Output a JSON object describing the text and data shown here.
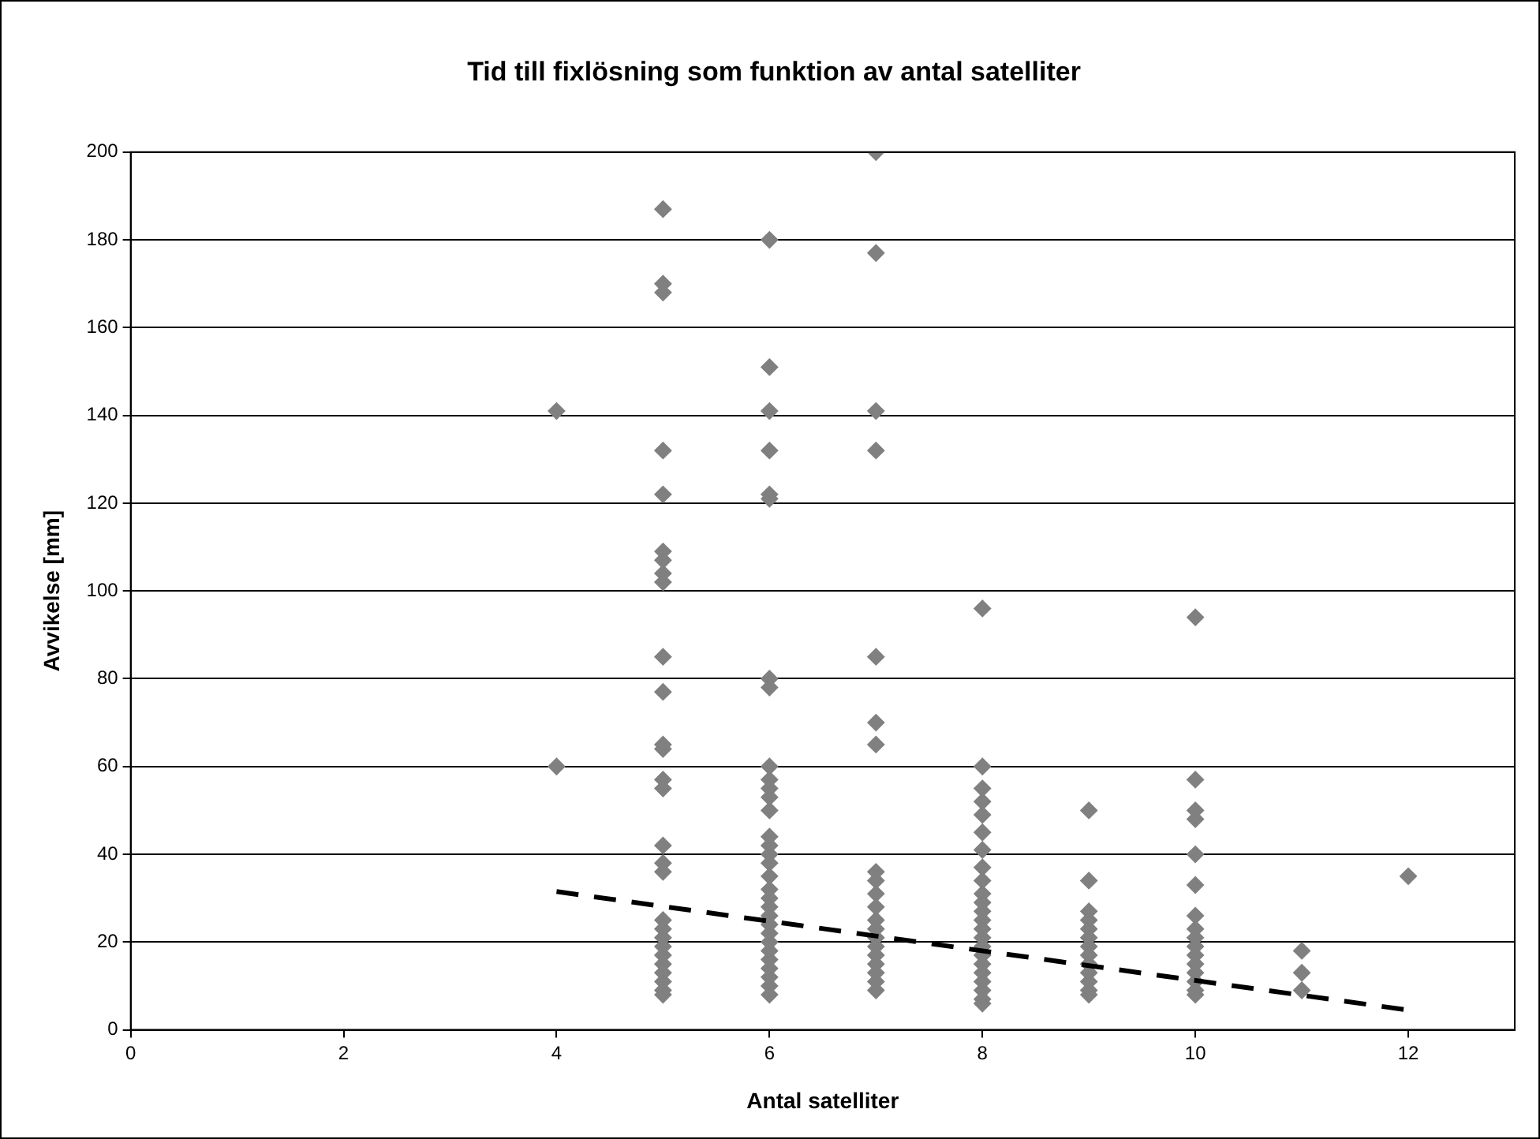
{
  "chart_data": {
    "type": "scatter",
    "title": "Tid till fixlösning som funktion av antal satelliter",
    "xlabel": "Antal satelliter",
    "ylabel": "Avvikelse [mm]",
    "xlim": [
      0,
      13
    ],
    "xticks": [
      0,
      2,
      4,
      6,
      8,
      10,
      12
    ],
    "ylim": [
      0,
      200
    ],
    "yticks": [
      0,
      20,
      40,
      60,
      80,
      100,
      120,
      140,
      160,
      180,
      200
    ],
    "grid": "y",
    "legend": false,
    "series": [
      {
        "type": "scatter",
        "marker": "diamond",
        "color": "#808080",
        "x": [
          4,
          4,
          5,
          5,
          5,
          5,
          5,
          5,
          5,
          5,
          5,
          5,
          5,
          5,
          5,
          5,
          5,
          5,
          5,
          5,
          5,
          5,
          5,
          5,
          5,
          5,
          5,
          5,
          5,
          5,
          6,
          6,
          6,
          6,
          6,
          6,
          6,
          6,
          6,
          6,
          6,
          6,
          6,
          6,
          6,
          6,
          6,
          6,
          6,
          6,
          6,
          6,
          6,
          6,
          6,
          6,
          6,
          6,
          6,
          6,
          6,
          7,
          7,
          7,
          7,
          7,
          7,
          7,
          7,
          7,
          7,
          7,
          7,
          7,
          7,
          7,
          7,
          7,
          7,
          7,
          7,
          8,
          8,
          8,
          8,
          8,
          8,
          8,
          8,
          8,
          8,
          8,
          8,
          8,
          8,
          8,
          8,
          8,
          8,
          8,
          8,
          8,
          8,
          8,
          9,
          9,
          9,
          9,
          9,
          9,
          9,
          9,
          9,
          9,
          9,
          9,
          9,
          10,
          10,
          10,
          10,
          10,
          10,
          10,
          10,
          10,
          10,
          10,
          10,
          10,
          10,
          10,
          10,
          11,
          11,
          11,
          12
        ],
        "values": [
          141,
          60,
          187,
          170,
          168,
          132,
          122,
          109,
          107,
          104,
          102,
          85,
          77,
          65,
          64,
          57,
          55,
          42,
          38,
          36,
          25,
          23,
          21,
          19,
          17,
          15,
          13,
          11,
          9,
          8,
          180,
          151,
          141,
          132,
          122,
          121,
          80,
          78,
          60,
          57,
          55,
          53,
          50,
          44,
          42,
          40,
          38,
          35,
          32,
          30,
          28,
          26,
          24,
          22,
          20,
          18,
          16,
          14,
          12,
          10,
          8,
          200,
          177,
          141,
          132,
          85,
          70,
          65,
          36,
          34,
          31,
          28,
          25,
          23,
          21,
          19,
          17,
          15,
          13,
          11,
          9,
          96,
          60,
          55,
          52,
          49,
          45,
          41,
          37,
          34,
          31,
          29,
          27,
          25,
          23,
          21,
          19,
          17,
          15,
          13,
          11,
          9,
          7,
          6,
          50,
          34,
          27,
          25,
          23,
          21,
          19,
          17,
          15,
          13,
          11,
          9,
          8,
          94,
          57,
          50,
          48,
          40,
          33,
          26,
          23,
          21,
          19,
          17,
          15,
          13,
          11,
          9,
          8,
          18,
          13,
          9,
          35
        ]
      },
      {
        "type": "line",
        "color": "#000000",
        "line_style": "dashed",
        "x": [
          4,
          12
        ],
        "values": [
          31.5,
          4.5
        ]
      }
    ]
  }
}
